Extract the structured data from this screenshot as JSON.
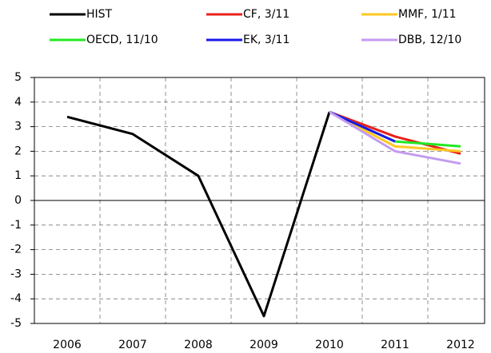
{
  "chart_data": {
    "type": "line",
    "categories": [
      "2006",
      "2007",
      "2008",
      "2009",
      "2010",
      "2011",
      "2012"
    ],
    "series": [
      {
        "name": "HIST",
        "color": "#000000",
        "values": [
          3.4,
          2.7,
          1.0,
          -4.7,
          3.6,
          null,
          null
        ]
      },
      {
        "name": "CF, 3/11",
        "color": "#e8201a",
        "values": [
          null,
          null,
          null,
          null,
          3.6,
          2.6,
          1.9
        ]
      },
      {
        "name": "MMF, 1/11",
        "color": "#ffc823",
        "values": [
          null,
          null,
          null,
          null,
          3.6,
          2.2,
          2.0
        ]
      },
      {
        "name": "OECD, 11/10",
        "color": "#22e822",
        "values": [
          null,
          null,
          null,
          null,
          3.6,
          2.4,
          2.2
        ]
      },
      {
        "name": "EK, 3/11",
        "color": "#1a1ae8",
        "values": [
          null,
          null,
          null,
          null,
          3.6,
          2.4,
          null
        ]
      },
      {
        "name": "DBB, 12/10",
        "color": "#c39bf0",
        "values": [
          null,
          null,
          null,
          null,
          3.6,
          2.0,
          1.5
        ]
      }
    ],
    "ylim": [
      -5,
      5
    ],
    "yticks": [
      -5,
      -4,
      -3,
      -2,
      -1,
      0,
      1,
      2,
      3,
      4,
      5
    ],
    "grid": true
  }
}
